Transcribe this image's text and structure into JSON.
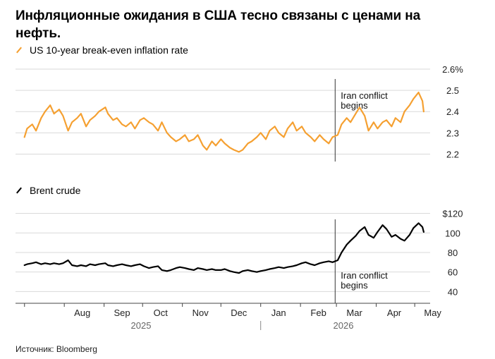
{
  "title": "Инфляционные ожидания в США тесно связаны с ценами на нефть.",
  "source": "Источник: Bloomberg",
  "colors": {
    "breakeven": "#f5a031",
    "brent": "#000000",
    "grid": "#d9d9d9",
    "axis": "#444444"
  },
  "chart_data": [
    {
      "type": "line",
      "legend": "US 10-year break-even inflation rate",
      "color": "#f5a031",
      "ylim": [
        2.165,
        2.6
      ],
      "yticks": [
        2.2,
        2.3,
        2.4,
        2.5,
        2.6
      ],
      "ytick_labels": [
        "2.2",
        "2.3",
        "2.4",
        "2.5",
        "2.6%"
      ],
      "annotation": {
        "text": [
          "Iran conflict",
          "begins"
        ],
        "date": "2026-02-28"
      },
      "series": [
        {
          "x": [
            "2025-07-01",
            "2025-07-03",
            "2025-07-07",
            "2025-07-10",
            "2025-07-14",
            "2025-07-17",
            "2025-07-21",
            "2025-07-24",
            "2025-07-28",
            "2025-07-31",
            "2025-08-04",
            "2025-08-07",
            "2025-08-11",
            "2025-08-14",
            "2025-08-18",
            "2025-08-21",
            "2025-08-25",
            "2025-08-28",
            "2025-09-02",
            "2025-09-04",
            "2025-09-08",
            "2025-09-11",
            "2025-09-15",
            "2025-09-18",
            "2025-09-22",
            "2025-09-25",
            "2025-09-29",
            "2025-10-02",
            "2025-10-06",
            "2025-10-09",
            "2025-10-13",
            "2025-10-16",
            "2025-10-20",
            "2025-10-23",
            "2025-10-27",
            "2025-10-30",
            "2025-11-03",
            "2025-11-06",
            "2025-11-10",
            "2025-11-13",
            "2025-11-17",
            "2025-11-20",
            "2025-11-24",
            "2025-11-27",
            "2025-12-01",
            "2025-12-04",
            "2025-12-08",
            "2025-12-11",
            "2025-12-15",
            "2025-12-18",
            "2025-12-22",
            "2025-12-25",
            "2025-12-29",
            "2026-01-01",
            "2026-01-05",
            "2026-01-08",
            "2026-01-12",
            "2026-01-15",
            "2026-01-19",
            "2026-01-22",
            "2026-01-26",
            "2026-01-29",
            "2026-02-02",
            "2026-02-05",
            "2026-02-09",
            "2026-02-12",
            "2026-02-16",
            "2026-02-19",
            "2026-02-23",
            "2026-02-26",
            "2026-03-02",
            "2026-03-05",
            "2026-03-09",
            "2026-03-12",
            "2026-03-16",
            "2026-03-19",
            "2026-03-23",
            "2026-03-26",
            "2026-03-30",
            "2026-04-02",
            "2026-04-06",
            "2026-04-09",
            "2026-04-13",
            "2026-04-16",
            "2026-04-20",
            "2026-04-23",
            "2026-04-27",
            "2026-04-30",
            "2026-05-04",
            "2026-05-07",
            "2026-05-08"
          ],
          "y": [
            2.28,
            2.32,
            2.34,
            2.31,
            2.37,
            2.4,
            2.43,
            2.39,
            2.41,
            2.38,
            2.31,
            2.35,
            2.37,
            2.39,
            2.33,
            2.36,
            2.38,
            2.4,
            2.42,
            2.39,
            2.36,
            2.37,
            2.34,
            2.33,
            2.35,
            2.32,
            2.36,
            2.37,
            2.35,
            2.34,
            2.31,
            2.35,
            2.3,
            2.28,
            2.26,
            2.27,
            2.29,
            2.26,
            2.27,
            2.29,
            2.24,
            2.22,
            2.26,
            2.24,
            2.27,
            2.25,
            2.23,
            2.22,
            2.21,
            2.22,
            2.25,
            2.26,
            2.28,
            2.3,
            2.27,
            2.31,
            2.33,
            2.3,
            2.28,
            2.32,
            2.35,
            2.31,
            2.33,
            2.3,
            2.28,
            2.26,
            2.29,
            2.27,
            2.25,
            2.28,
            2.29,
            2.34,
            2.37,
            2.35,
            2.39,
            2.42,
            2.38,
            2.31,
            2.35,
            2.32,
            2.35,
            2.36,
            2.33,
            2.37,
            2.35,
            2.4,
            2.43,
            2.46,
            2.49,
            2.45,
            2.4
          ]
        }
      ]
    },
    {
      "type": "line",
      "legend": "Brent crude",
      "color": "#000000",
      "ylim": [
        28,
        124
      ],
      "yticks": [
        40,
        60,
        80,
        100,
        120
      ],
      "ytick_labels": [
        "40",
        "60",
        "80",
        "100",
        "$120"
      ],
      "annotation": {
        "text": [
          "Iran conflict",
          "begins"
        ],
        "date": "2026-02-28"
      },
      "series": [
        {
          "x": [
            "2025-07-01",
            "2025-07-03",
            "2025-07-07",
            "2025-07-10",
            "2025-07-14",
            "2025-07-17",
            "2025-07-21",
            "2025-07-24",
            "2025-07-28",
            "2025-07-31",
            "2025-08-04",
            "2025-08-07",
            "2025-08-11",
            "2025-08-14",
            "2025-08-18",
            "2025-08-21",
            "2025-08-25",
            "2025-08-28",
            "2025-09-02",
            "2025-09-04",
            "2025-09-08",
            "2025-09-11",
            "2025-09-15",
            "2025-09-18",
            "2025-09-22",
            "2025-09-25",
            "2025-09-29",
            "2025-10-02",
            "2025-10-06",
            "2025-10-09",
            "2025-10-13",
            "2025-10-16",
            "2025-10-20",
            "2025-10-23",
            "2025-10-27",
            "2025-10-30",
            "2025-11-03",
            "2025-11-06",
            "2025-11-10",
            "2025-11-13",
            "2025-11-17",
            "2025-11-20",
            "2025-11-24",
            "2025-11-27",
            "2025-12-01",
            "2025-12-04",
            "2025-12-08",
            "2025-12-11",
            "2025-12-15",
            "2025-12-18",
            "2025-12-22",
            "2025-12-25",
            "2025-12-29",
            "2026-01-01",
            "2026-01-05",
            "2026-01-08",
            "2026-01-12",
            "2026-01-15",
            "2026-01-19",
            "2026-01-22",
            "2026-01-26",
            "2026-01-29",
            "2026-02-02",
            "2026-02-05",
            "2026-02-09",
            "2026-02-12",
            "2026-02-16",
            "2026-02-19",
            "2026-02-23",
            "2026-02-26",
            "2026-03-02",
            "2026-03-05",
            "2026-03-09",
            "2026-03-12",
            "2026-03-16",
            "2026-03-19",
            "2026-03-23",
            "2026-03-26",
            "2026-03-30",
            "2026-04-02",
            "2026-04-06",
            "2026-04-09",
            "2026-04-13",
            "2026-04-16",
            "2026-04-20",
            "2026-04-23",
            "2026-04-27",
            "2026-04-30",
            "2026-05-04",
            "2026-05-07",
            "2026-05-08"
          ],
          "y": [
            67,
            68,
            69,
            70,
            68,
            69,
            68,
            69,
            68,
            69,
            72,
            67,
            66,
            67,
            66,
            68,
            67,
            68,
            69,
            67,
            66,
            67,
            68,
            67,
            66,
            67,
            68,
            66,
            64,
            65,
            66,
            62,
            61,
            62,
            64,
            65,
            64,
            63,
            62,
            64,
            63,
            62,
            63,
            62,
            62,
            63,
            61,
            60,
            59,
            61,
            62,
            61,
            60,
            61,
            62,
            63,
            64,
            65,
            64,
            65,
            66,
            67,
            69,
            70,
            68,
            67,
            69,
            70,
            71,
            70,
            72,
            80,
            88,
            92,
            97,
            102,
            106,
            98,
            95,
            101,
            108,
            104,
            96,
            98,
            94,
            92,
            98,
            105,
            110,
            106,
            101
          ]
        }
      ]
    }
  ],
  "x_axis": {
    "month_ticks": [
      "2025-07-01",
      "2025-08-01",
      "2025-09-01",
      "2025-10-01",
      "2025-11-01",
      "2025-12-01",
      "2026-01-01",
      "2026-02-01",
      "2026-03-01",
      "2026-04-01",
      "2026-05-01"
    ],
    "month_labels": [
      "Aug",
      "Sep",
      "Oct",
      "Nov",
      "Dec",
      "Jan",
      "Feb",
      "Mar",
      "Apr",
      "May"
    ],
    "month_label_dates": [
      "2025-08-15",
      "2025-09-15",
      "2025-10-15",
      "2025-11-15",
      "2025-12-15",
      "2026-01-15",
      "2026-02-15",
      "2026-03-15",
      "2026-04-15",
      "2026-05-15"
    ],
    "year_labels": [
      "2025",
      "2026"
    ]
  }
}
